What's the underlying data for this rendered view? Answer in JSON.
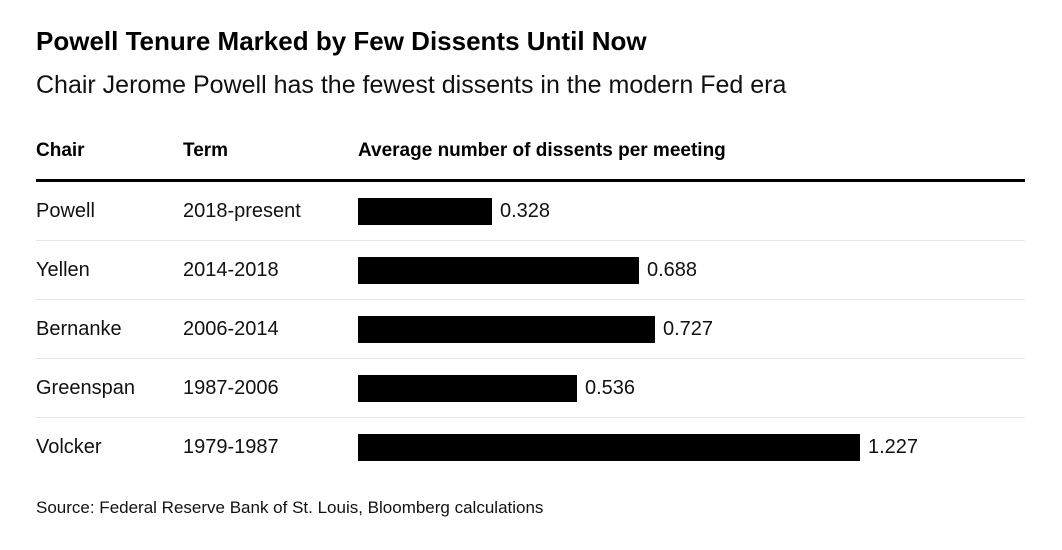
{
  "header": {
    "title": "Powell Tenure Marked by Few Dissents Until Now",
    "subtitle": "Chair Jerome Powell has the fewest dissents in the modern Fed era"
  },
  "columns": {
    "chair": "Chair",
    "term": "Term",
    "metric": "Average number of dissents per meeting"
  },
  "chart_data": {
    "type": "bar",
    "orientation": "horizontal",
    "title": "Powell Tenure Marked by Few Dissents Until Now",
    "subtitle": "Chair Jerome Powell has the fewest dissents in the modern Fed era",
    "xlabel": "Average number of dissents per meeting",
    "categories": [
      "Powell",
      "Yellen",
      "Bernanke",
      "Greenspan",
      "Volcker"
    ],
    "terms": [
      "2018-present",
      "2014-2018",
      "2006-2014",
      "1987-2006",
      "1979-1987"
    ],
    "values": [
      0.328,
      0.688,
      0.727,
      0.536,
      1.227
    ],
    "value_labels": [
      "0.328",
      "0.688",
      "0.727",
      "0.536",
      "1.227"
    ],
    "xlim": [
      0,
      1.227
    ],
    "grid": false,
    "legend": false,
    "bar_color": "#000000"
  },
  "footer": {
    "source": "Source: Federal Reserve Bank of St. Louis, Bloomberg calculations"
  },
  "colors": {
    "background": "#ffffff",
    "bar": "#000000",
    "text": "#000000",
    "separator": "#e6e6e6",
    "header_rule": "#000000"
  }
}
